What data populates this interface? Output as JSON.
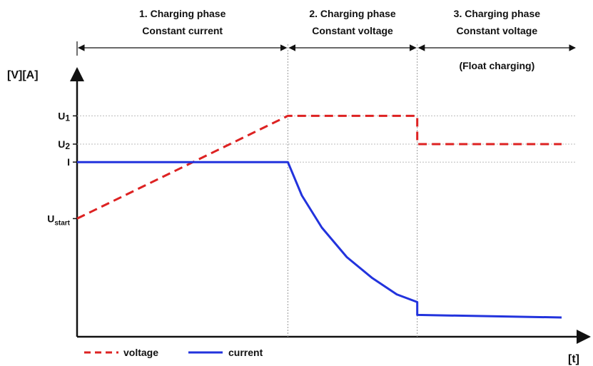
{
  "chart_data": {
    "type": "line",
    "title": "",
    "ylabel": "[V][A]",
    "xlabel": "[t]",
    "xlim": [
      0,
      10
    ],
    "ylim": [
      0,
      10
    ],
    "phases": [
      {
        "line1": "1. Charging  phase",
        "line2": "Constant current",
        "line3": "",
        "x_start": 0,
        "x_end": 4.22
      },
      {
        "line1": "2. Charging phase",
        "line2": "Constant voltage",
        "line3": "",
        "x_start": 4.22,
        "x_end": 6.81
      },
      {
        "line1": "3. Charging phase",
        "line2": "Constant voltage",
        "line3": "(Float charging)",
        "x_start": 6.81,
        "x_end": 10
      }
    ],
    "y_ticks": [
      {
        "main": "U",
        "sub": "1",
        "value": 8.6
      },
      {
        "main": "U",
        "sub": "2",
        "value": 7.5
      },
      {
        "main": "I",
        "sub": "",
        "value": 6.8
      },
      {
        "main": "U",
        "sub": "start",
        "value": 4.6
      }
    ],
    "series": [
      {
        "name": "voltage",
        "color": "#dd2222",
        "dash": true,
        "points": [
          [
            0,
            4.6
          ],
          [
            4.22,
            8.6
          ],
          [
            6.81,
            8.6
          ],
          [
            6.81,
            7.5
          ],
          [
            9.7,
            7.5
          ]
        ]
      },
      {
        "name": "current",
        "color": "#2233dd",
        "dash": false,
        "points": [
          [
            0,
            6.8
          ],
          [
            4.22,
            6.8
          ],
          [
            4.5,
            5.5
          ],
          [
            4.9,
            4.25
          ],
          [
            5.4,
            3.1
          ],
          [
            5.9,
            2.3
          ],
          [
            6.4,
            1.65
          ],
          [
            6.81,
            1.35
          ],
          [
            6.81,
            0.85
          ],
          [
            9.7,
            0.75
          ]
        ]
      }
    ]
  }
}
